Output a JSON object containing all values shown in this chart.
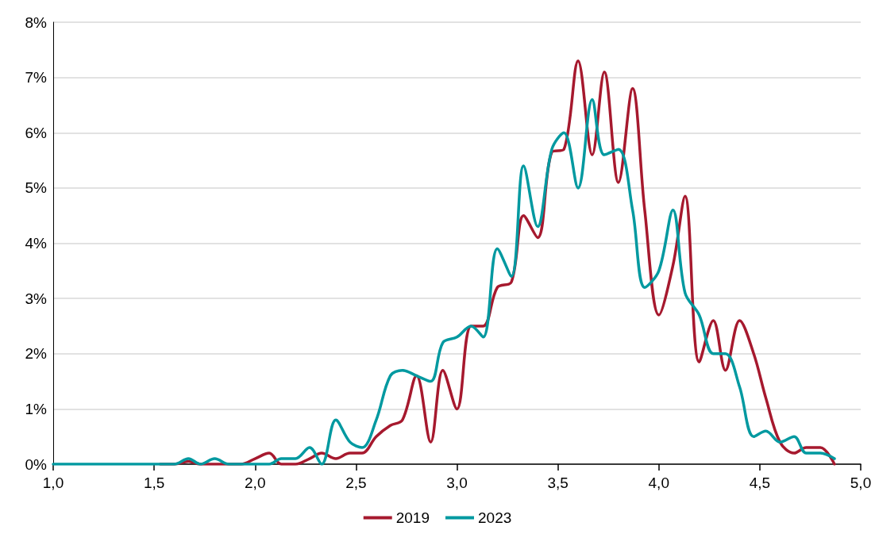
{
  "chart_data": {
    "type": "line",
    "x": [
      1.0,
      1.07,
      1.13,
      1.2,
      1.27,
      1.33,
      1.4,
      1.47,
      1.53,
      1.6,
      1.67,
      1.73,
      1.8,
      1.87,
      1.93,
      2.0,
      2.07,
      2.13,
      2.2,
      2.27,
      2.33,
      2.4,
      2.47,
      2.53,
      2.6,
      2.67,
      2.73,
      2.8,
      2.87,
      2.93,
      3.0,
      3.07,
      3.13,
      3.2,
      3.27,
      3.33,
      3.4,
      3.47,
      3.53,
      3.6,
      3.67,
      3.73,
      3.8,
      3.87,
      3.93,
      4.0,
      4.07,
      4.13,
      4.2,
      4.27,
      4.33,
      4.4,
      4.47,
      4.53,
      4.6,
      4.67,
      4.73,
      4.8,
      4.87
    ],
    "series": [
      {
        "name": "2019",
        "color": "#a6192e",
        "values": [
          null,
          null,
          null,
          null,
          null,
          null,
          null,
          null,
          0,
          0,
          0.05,
          0,
          0,
          0,
          0,
          0.1,
          0.2,
          0,
          0,
          0.1,
          0.2,
          0.1,
          0.2,
          0.2,
          0.5,
          0.7,
          0.8,
          1.6,
          0.4,
          1.7,
          1.0,
          2.5,
          2.5,
          3.2,
          3.3,
          4.5,
          4.1,
          5.65,
          5.7,
          7.3,
          5.6,
          7.1,
          5.1,
          6.8,
          4.6,
          2.7,
          3.6,
          4.85,
          1.85,
          2.6,
          1.7,
          2.6,
          2.0,
          1.2,
          0.4,
          0.2,
          0.3,
          0.3,
          0
        ]
      },
      {
        "name": "2023",
        "color": "#0099a0",
        "values": [
          0,
          0,
          0,
          0,
          0,
          0,
          0,
          0,
          0,
          0,
          0.1,
          0,
          0.1,
          0,
          0,
          0,
          0,
          0.1,
          0.1,
          0.3,
          0,
          0.8,
          0.4,
          0.3,
          0.8,
          1.6,
          1.7,
          1.6,
          1.5,
          2.2,
          2.3,
          2.5,
          2.3,
          3.9,
          3.4,
          5.4,
          4.3,
          5.7,
          6.0,
          5.0,
          6.6,
          5.6,
          5.7,
          4.6,
          3.2,
          3.5,
          4.6,
          3.1,
          2.7,
          2.0,
          2.0,
          1.4,
          0.5,
          0.6,
          0.4,
          0.5,
          0.2,
          0.2,
          0.1
        ]
      }
    ],
    "xlim": [
      1.0,
      5.0
    ],
    "xticks": [
      {
        "value": 1.0,
        "label": "1,0"
      },
      {
        "value": 1.5,
        "label": "1,5"
      },
      {
        "value": 2.0,
        "label": "2,0"
      },
      {
        "value": 2.5,
        "label": "2,5"
      },
      {
        "value": 3.0,
        "label": "3,0"
      },
      {
        "value": 3.5,
        "label": "3,5"
      },
      {
        "value": 4.0,
        "label": "4,0"
      },
      {
        "value": 4.5,
        "label": "4,5"
      },
      {
        "value": 5.0,
        "label": "5,0"
      }
    ],
    "ylim": [
      0,
      8
    ],
    "yticks": [
      {
        "value": 0,
        "label": "0%"
      },
      {
        "value": 1,
        "label": "1%"
      },
      {
        "value": 2,
        "label": "2%"
      },
      {
        "value": 3,
        "label": "3%"
      },
      {
        "value": 4,
        "label": "4%"
      },
      {
        "value": 5,
        "label": "5%"
      },
      {
        "value": 6,
        "label": "6%"
      },
      {
        "value": 7,
        "label": "7%"
      },
      {
        "value": 8,
        "label": "8%"
      }
    ],
    "grid": "y",
    "legend": "bottom",
    "marker": "none",
    "line_style": "solid"
  }
}
